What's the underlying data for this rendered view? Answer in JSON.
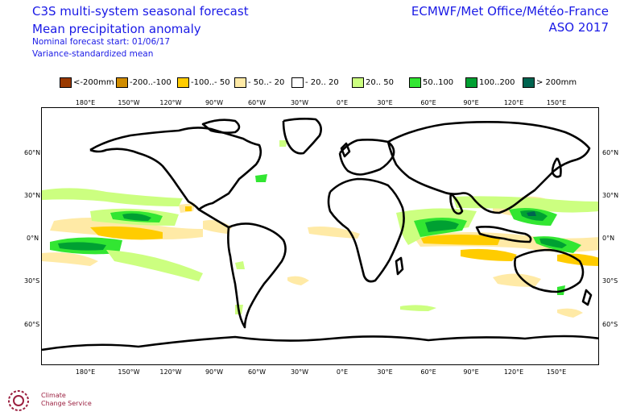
{
  "header": {
    "title_line1": "C3S multi-system seasonal forecast",
    "title_line2": "Mean precipitation anomaly",
    "nominal_start": "Nominal forecast start: 01/06/17",
    "method": "Variance-standardized mean",
    "producer": "ECMWF/Met Office/Météo-France",
    "season": "ASO 2017"
  },
  "legend": [
    {
      "label": "<-200mm",
      "color": "#9a3a00"
    },
    {
      "label": "-200..-100",
      "color": "#d08c00"
    },
    {
      "label": "-100..- 50",
      "color": "#ffcc00"
    },
    {
      "label": "- 50..- 20",
      "color": "#ffeaa6"
    },
    {
      "label": "- 20.. 20",
      "color": "#ffffff"
    },
    {
      "label": " 20.. 50",
      "color": "#ccff80"
    },
    {
      "label": " 50..100",
      "color": "#32e632"
    },
    {
      "label": "100..200",
      "color": "#00a032"
    },
    {
      "label": "> 200mm",
      "color": "#006450"
    }
  ],
  "lon_ticks": [
    "180°E",
    "150°W",
    "120°W",
    "90°W",
    "60°W",
    "30°W",
    "0°E",
    "30°E",
    "60°E",
    "90°E",
    "120°E",
    "150°E"
  ],
  "lat_ticks": [
    "60°N",
    "30°N",
    "0°N",
    "30°S",
    "60°S"
  ],
  "logo": {
    "line1": "Climate",
    "line2": "Change Service",
    "icon": "copernicus-c3s-logo-icon"
  }
}
